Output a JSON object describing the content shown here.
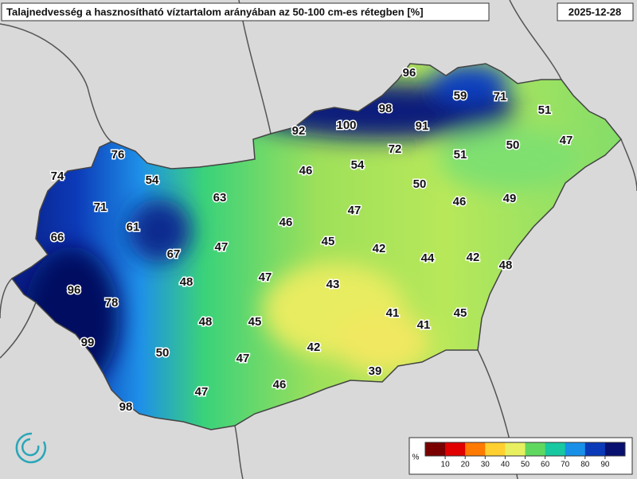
{
  "header": {
    "title": "Talajnedvesség a hasznosítható víztartalom arányában az 50-100 cm-es rétegben [%]",
    "date": "2025-12-28"
  },
  "stations": [
    96,
    59,
    71,
    98,
    51,
    92,
    100,
    91,
    76,
    72,
    51,
    50,
    47,
    74,
    54,
    46,
    54,
    50,
    63,
    71,
    46,
    49,
    47,
    61,
    46,
    66,
    45,
    47,
    67,
    42,
    44,
    42,
    48,
    48,
    47,
    43,
    96,
    78,
    41,
    45,
    48,
    45,
    41,
    99,
    50,
    42,
    47,
    39,
    47,
    46,
    98
  ],
  "legend": {
    "unit": "%",
    "ticks": [
      10,
      20,
      30,
      40,
      50,
      60,
      70,
      80,
      90
    ]
  }
}
